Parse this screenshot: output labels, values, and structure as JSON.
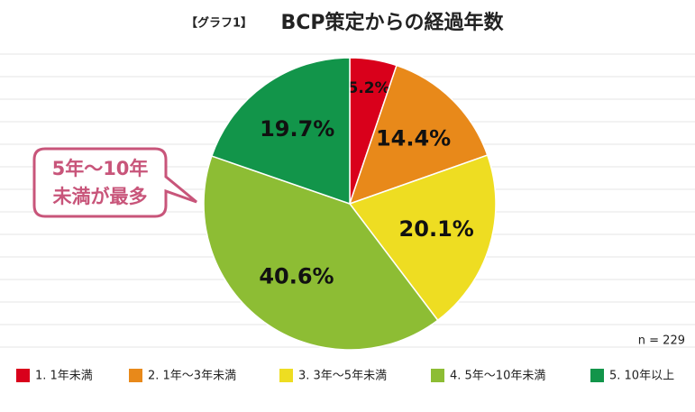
{
  "chart_data": {
    "type": "pie",
    "title_prefix": "【グラフ1】",
    "title": "BCP策定からの経過年数",
    "categories": [
      "1. 1年未満",
      "2. 1年～3年未満",
      "3. 3年～5年未満",
      "4. 5年～10年未満",
      "5. 10年以上"
    ],
    "values": [
      5.2,
      14.4,
      20.1,
      40.6,
      19.7
    ],
    "value_labels": [
      "5.2%",
      "14.4%",
      "20.1%",
      "40.6%",
      "19.7%"
    ],
    "colors": [
      "#d9001b",
      "#e8891a",
      "#eedd22",
      "#8dbd34",
      "#12954a"
    ],
    "annotation": [
      "5年～10年",
      "未満が最多"
    ],
    "note": "n = 229"
  }
}
